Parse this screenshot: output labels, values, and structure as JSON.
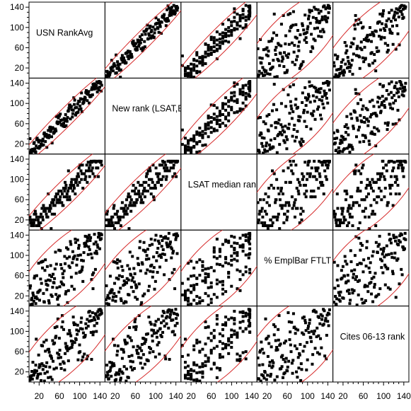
{
  "chart_data": {
    "type": "scatter",
    "variables": [
      "USN RankAvg",
      "New rank (LSAT,Emp,Cites)",
      "LSAT median rank",
      "% EmplBar FTLT rank",
      "Cites 06-13 rank"
    ],
    "axis_range": [
      0,
      150
    ],
    "ticks": [
      20,
      60,
      100,
      140
    ],
    "ellipse_level": 0.95,
    "grid": false,
    "colors": {
      "points": "#000000",
      "ellipse": "#d62a2a",
      "frame": "#000000",
      "background": "#ffffff"
    },
    "n_points": 150
  }
}
